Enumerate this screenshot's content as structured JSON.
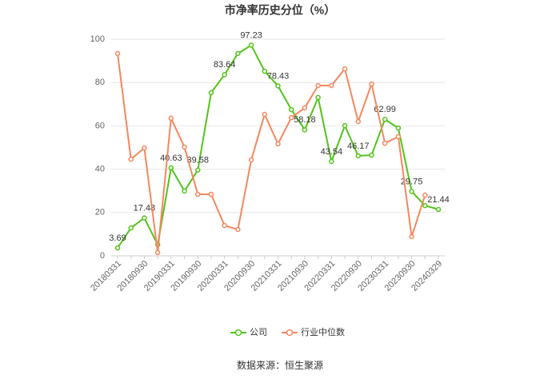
{
  "chart_data": {
    "type": "line",
    "title": "市净率历史分位（%）",
    "source": "数据来源：恒生聚源",
    "categories": [
      "20180331",
      null,
      "20180930",
      null,
      "20190331",
      null,
      "20190930",
      null,
      "20200331",
      null,
      "20200930",
      null,
      "20210331",
      null,
      "20210930",
      null,
      "20220331",
      null,
      "20220930",
      null,
      "20230331",
      null,
      "20230930",
      null,
      "20240329"
    ],
    "series": [
      {
        "name": "公司",
        "color": "#52c41a",
        "values": [
          3.69,
          12.9,
          17.48,
          5.2,
          40.63,
          29.9,
          39.58,
          75.3,
          83.64,
          93.4,
          97.23,
          85.2,
          78.43,
          67.5,
          58.18,
          73.1,
          43.54,
          60.1,
          46.17,
          46.5,
          62.99,
          59.0,
          29.75,
          23.2,
          21.44
        ],
        "value_labels": [
          "3.69",
          null,
          "17.48",
          null,
          "40.63",
          null,
          "39.58",
          null,
          "83.64",
          null,
          "97.23",
          null,
          "78.43",
          null,
          "58.18",
          null,
          "43.54",
          null,
          "46.17",
          null,
          "62.99",
          null,
          "29.75",
          null,
          "21.44"
        ]
      },
      {
        "name": "行业中位数",
        "color": "#f5875f",
        "values": [
          93.4,
          44.6,
          49.8,
          1.5,
          63.5,
          50.2,
          28.4,
          28.4,
          14.0,
          12.2,
          44.3,
          65.3,
          51.7,
          63.8,
          68.3,
          78.6,
          78.6,
          86.3,
          62.0,
          79.3,
          52.0,
          55.0,
          8.9,
          28.0,
          null
        ]
      }
    ],
    "ylim": [
      0,
      100
    ],
    "yticks": [
      0,
      20,
      40,
      60,
      80,
      100
    ],
    "grid": true
  }
}
